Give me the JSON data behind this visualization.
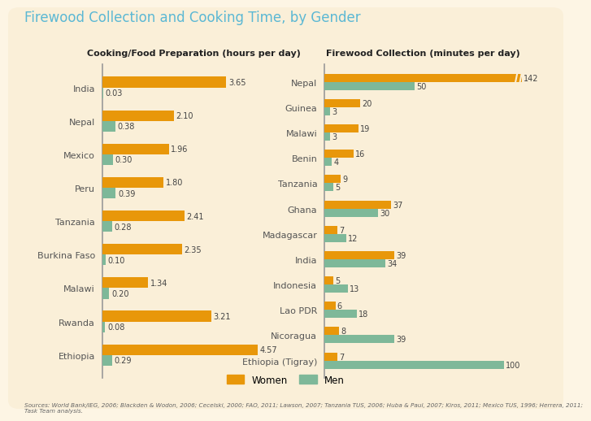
{
  "title": "Firewood Collection and Cooking Time, by Gender",
  "background_color": "#fdf5e4",
  "panel_color": "#fdf5e4",
  "border_color": "#e8d8b0",
  "left_title": "Cooking/Food Preparation (hours per day)",
  "right_title": "Firewood Collection (minutes per day)",
  "women_color": "#E8970A",
  "men_color": "#7EB899",
  "cooking_countries": [
    "India",
    "Nepal",
    "Mexico",
    "Peru",
    "Tanzania",
    "Burkina Faso",
    "Malawi",
    "Rwanda",
    "Ethiopia"
  ],
  "cooking_women": [
    3.65,
    2.1,
    1.96,
    1.8,
    2.41,
    2.35,
    1.34,
    3.21,
    4.57
  ],
  "cooking_men": [
    0.03,
    0.38,
    0.3,
    0.39,
    0.28,
    0.1,
    0.2,
    0.08,
    0.29
  ],
  "firewood_countries": [
    "Nepal",
    "Guinea",
    "Malawi",
    "Benin",
    "Tanzania",
    "Ghana",
    "Madagascar",
    "India",
    "Indonesia",
    "Lao PDR",
    "Nicoragua",
    "Ethiopia (Tigray)"
  ],
  "firewood_women": [
    142,
    20,
    19,
    16,
    9,
    37,
    7,
    39,
    5,
    6,
    8,
    7
  ],
  "firewood_men": [
    50,
    3,
    3,
    4,
    5,
    30,
    12,
    34,
    13,
    18,
    39,
    100
  ],
  "firewood_xlim": 110,
  "source_text": "Sources: World Bank/IEG, 2006; Blackden & Wodon, 2006; Cecelski, 2000; FAO, 2011; Lawson, 2007; Tanzania TUS, 2006; Huba & Paul, 2007; Kiros, 2011; Mexico TUS, 1996; Herrera, 2011;\nTask Team analysis."
}
